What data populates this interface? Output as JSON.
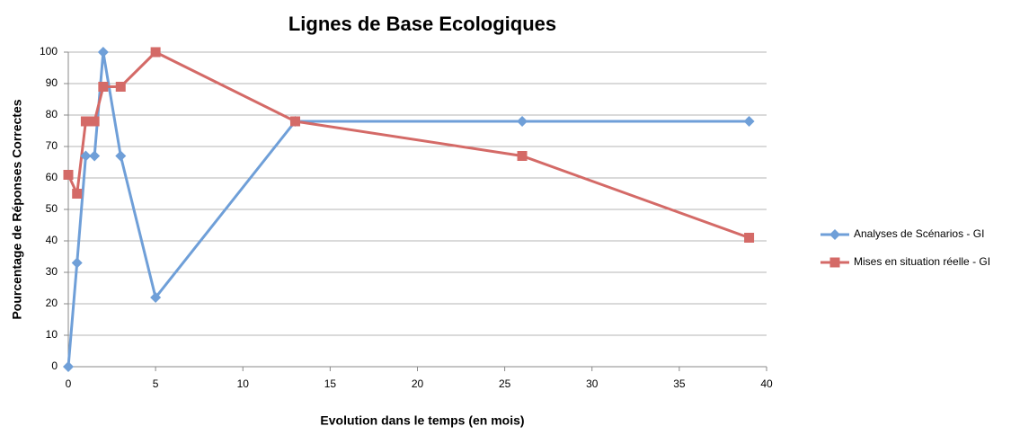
{
  "chart_data": {
    "type": "line",
    "title": "Lignes de Base Ecologiques",
    "xlabel": "Evolution dans le temps (en mois)",
    "ylabel": "Pourcentage de Réponses Correctes",
    "x": [
      0,
      0.5,
      1,
      1.5,
      2,
      3,
      5,
      13,
      26,
      39
    ],
    "series": [
      {
        "name": "Analyses de Scénarios - GI",
        "color": "#6f9fd8",
        "marker": "diamond",
        "values": [
          0,
          33,
          67,
          67,
          100,
          67,
          22,
          78,
          78,
          78
        ]
      },
      {
        "name": "Mises en situation réelle - GI",
        "color": "#d46a67",
        "marker": "square",
        "values": [
          61,
          55,
          78,
          78,
          89,
          89,
          100,
          78,
          67,
          41
        ]
      }
    ],
    "xlim": [
      0,
      40
    ],
    "xticks": [
      0,
      5,
      10,
      15,
      20,
      25,
      30,
      35,
      40
    ],
    "ylim": [
      0,
      100
    ],
    "yticks": [
      0,
      10,
      20,
      30,
      40,
      50,
      60,
      70,
      80,
      90,
      100
    ],
    "grid": true,
    "legend": "right"
  }
}
